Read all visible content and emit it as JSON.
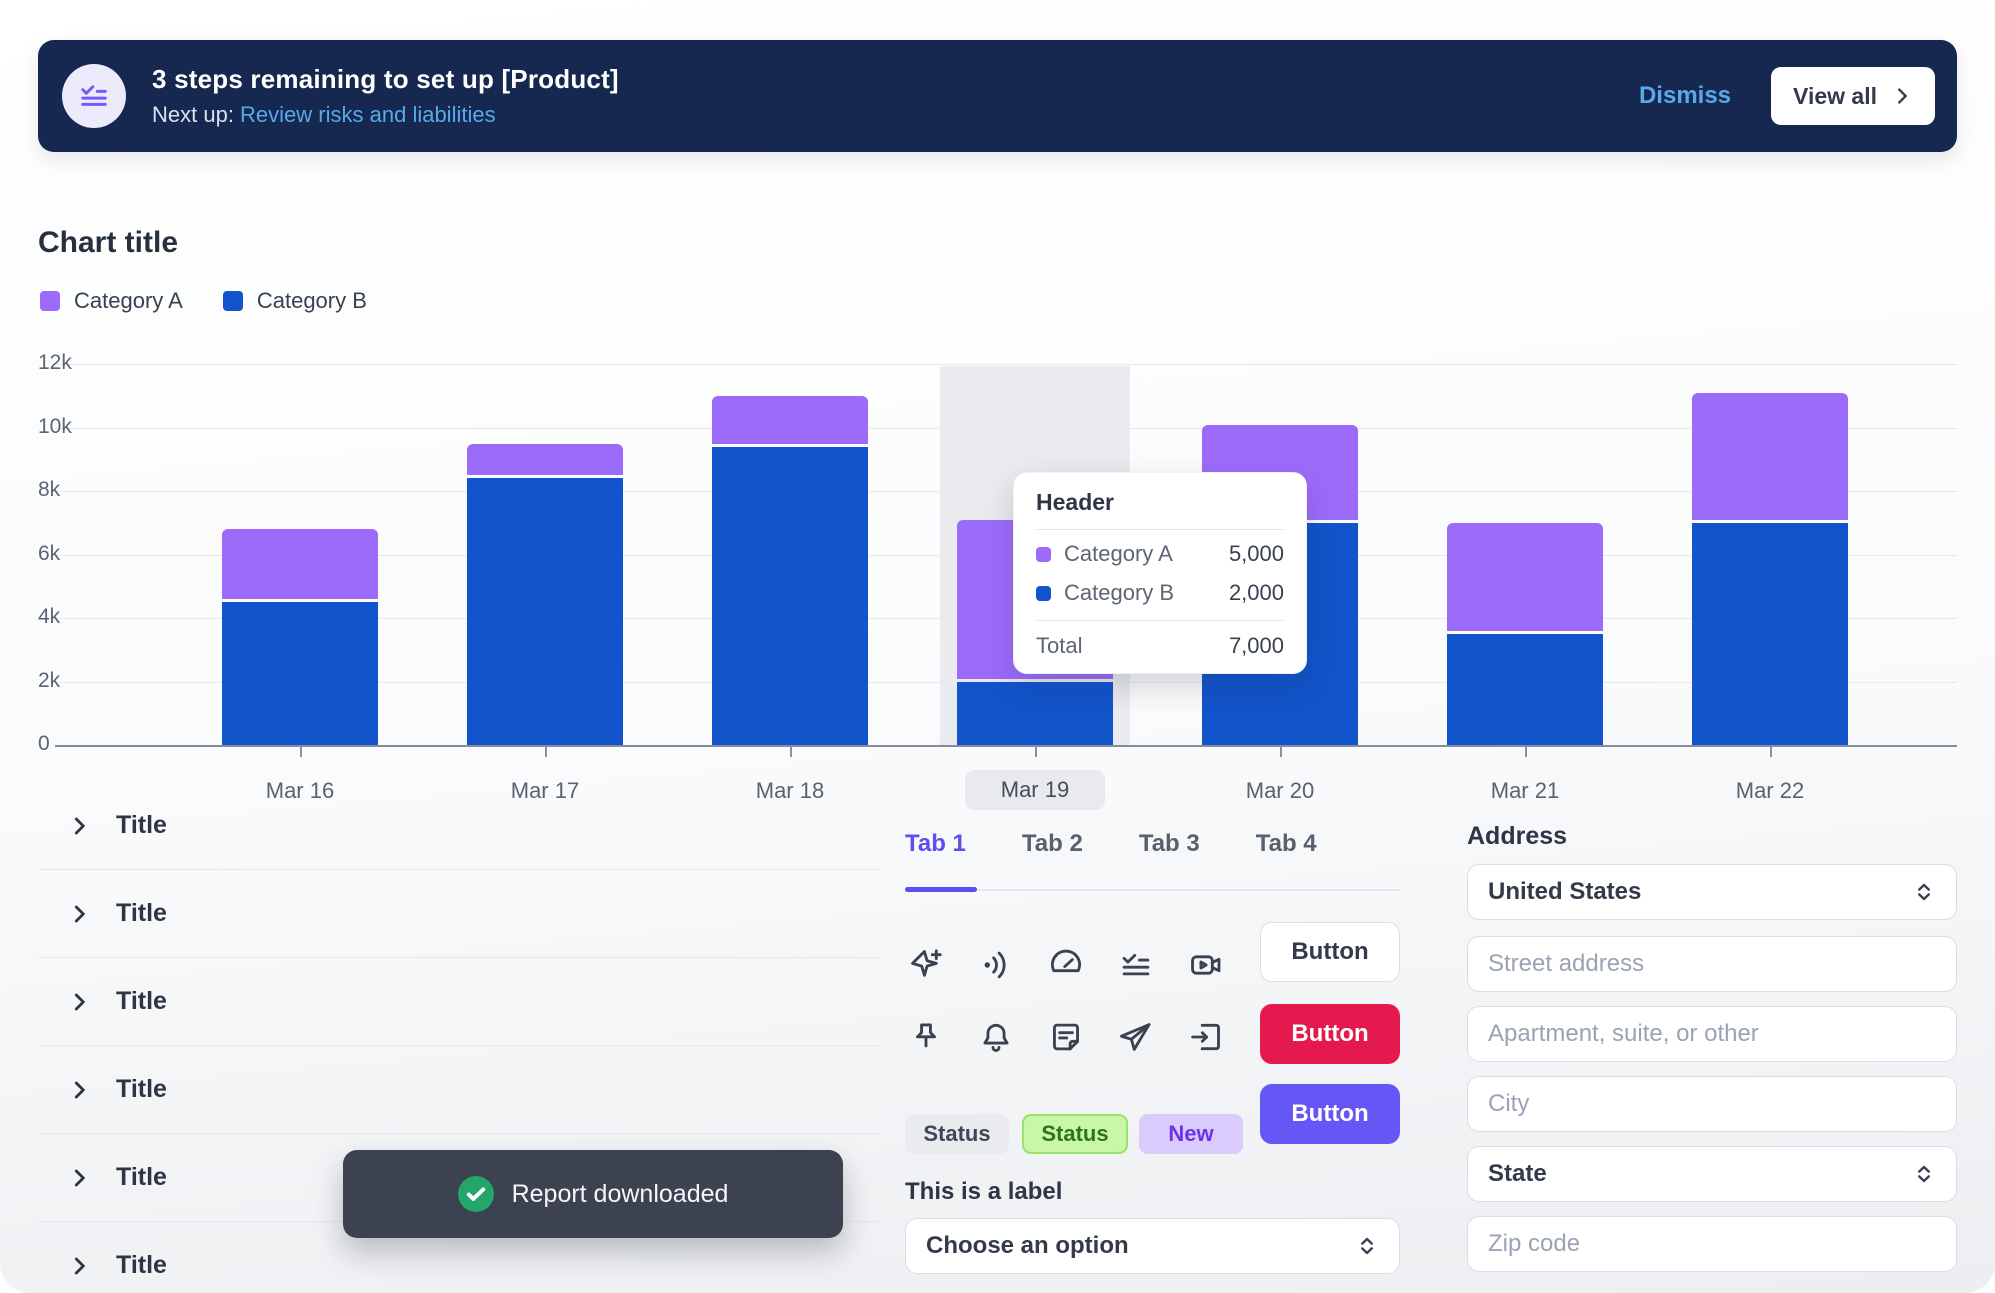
{
  "banner": {
    "title": "3 steps remaining to set up [Product]",
    "next_up_prefix": "Next up: ",
    "next_up_link": "Review risks and liabilities",
    "dismiss_label": "Dismiss",
    "view_all_label": "View all"
  },
  "chart": {
    "title": "Chart title",
    "legend": [
      {
        "label": "Category A",
        "color": "#9D6BFA"
      },
      {
        "label": "Category B",
        "color": "#1254CB"
      }
    ],
    "tooltip": {
      "header": "Header",
      "rows": [
        {
          "label": "Category A",
          "value": "5,000",
          "color": "#9D6BFA"
        },
        {
          "label": "Category B",
          "value": "2,000",
          "color": "#1254CB"
        }
      ],
      "total_label": "Total",
      "total_value": "7,000"
    }
  },
  "chart_data": {
    "type": "bar",
    "stacked": true,
    "title": "Chart title",
    "categories": [
      "Mar 16",
      "Mar 17",
      "Mar 18",
      "Mar 19",
      "Mar 20",
      "Mar 21",
      "Mar 22"
    ],
    "series": [
      {
        "name": "Category B",
        "color": "#1254CB",
        "values": [
          4500,
          8400,
          9400,
          2000,
          7000,
          3500,
          7000
        ]
      },
      {
        "name": "Category A",
        "color": "#9D6BFA",
        "values": [
          2200,
          1000,
          1500,
          5000,
          3000,
          3400,
          4000
        ]
      }
    ],
    "ylim": [
      0,
      12000
    ],
    "y_ticks": [
      "12k",
      "10k",
      "8k",
      "6k",
      "4k",
      "2k",
      "0"
    ],
    "grid": "horizontal",
    "legend_position": "top-left",
    "highlighted_category": "Mar 19"
  },
  "list": {
    "items": [
      "Title",
      "Title",
      "Title",
      "Title",
      "Title",
      "Title"
    ]
  },
  "tabs": {
    "items": [
      {
        "label": "Tab 1",
        "active": true
      },
      {
        "label": "Tab 2",
        "active": false
      },
      {
        "label": "Tab 3",
        "active": false
      },
      {
        "label": "Tab 4",
        "active": false
      }
    ]
  },
  "icon_grid": {
    "row1": [
      "sparkle",
      "broadcast",
      "speedometer",
      "checklist",
      "video-camera"
    ],
    "row2": [
      "pushpin",
      "bell",
      "note",
      "send",
      "export-doc"
    ]
  },
  "buttons": [
    {
      "label": "Button",
      "variant": "outline"
    },
    {
      "label": "Button",
      "variant": "danger"
    },
    {
      "label": "Button",
      "variant": "primary"
    }
  ],
  "badges": [
    {
      "label": "Status",
      "variant": "gray"
    },
    {
      "label": "Status",
      "variant": "green"
    },
    {
      "label": "New",
      "variant": "purple"
    }
  ],
  "select_demo": {
    "label": "This is a label",
    "value": "Choose an option"
  },
  "address_form": {
    "heading": "Address",
    "country_value": "United States",
    "street_placeholder": "Street address",
    "line2_placeholder": "Apartment, suite, or other",
    "city_placeholder": "City",
    "state_value": "State",
    "zip_placeholder": "Zip code"
  },
  "toast": {
    "message": "Report downloaded"
  },
  "colors": {
    "navy": "#162750",
    "link_blue": "#58A9E9",
    "category_a": "#9D6BFA",
    "category_b": "#1254CB",
    "accent_purple": "#6457F5",
    "danger_red": "#E41A4F",
    "success_green": "#23A669"
  }
}
